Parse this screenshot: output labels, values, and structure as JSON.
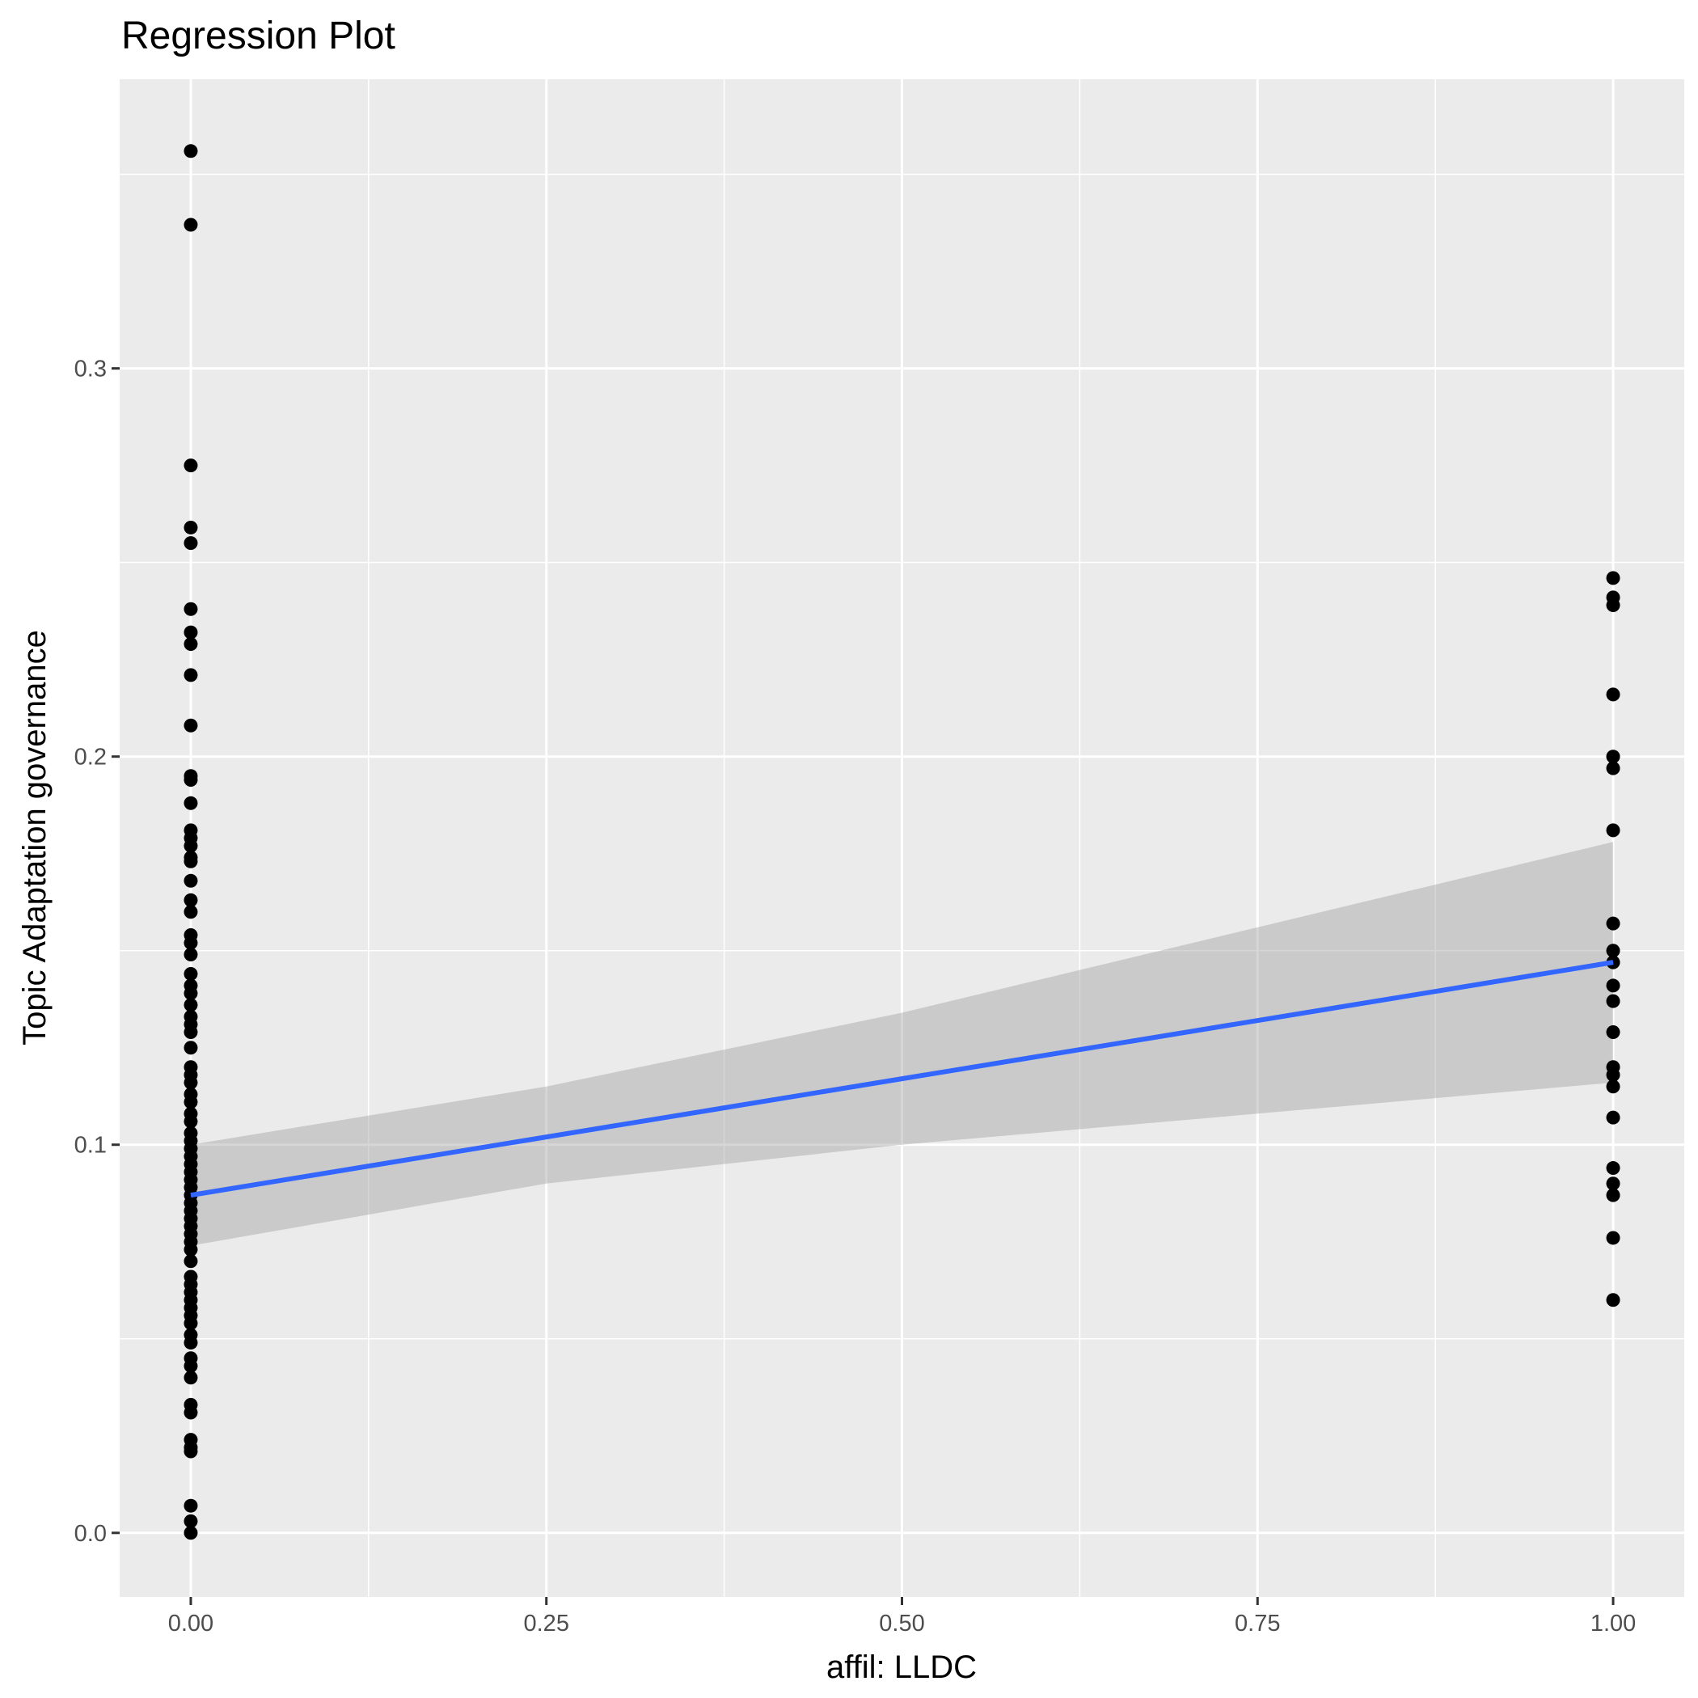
{
  "chart_data": {
    "type": "scatter",
    "title": "Regression Plot",
    "xlabel": "affil: LLDC",
    "ylabel": "Topic Adaptation governance",
    "xlim": [
      -0.05,
      1.05
    ],
    "ylim": [
      -0.0165,
      0.3745
    ],
    "x_ticks": [
      0.0,
      0.25,
      0.5,
      0.75,
      1.0
    ],
    "x_tick_labels": [
      "0.00",
      "0.25",
      "0.50",
      "0.75",
      "1.00"
    ],
    "y_ticks": [
      0.0,
      0.1,
      0.2,
      0.3
    ],
    "y_tick_labels": [
      "0.0",
      "0.1",
      "0.2",
      "0.3"
    ],
    "grid": true,
    "background": "#ebebeb",
    "grid_color": "#ffffff",
    "point_color": "#000000",
    "fit_color": "#3366ff",
    "ribbon_color": "#999999",
    "points_x0": [
      0.356,
      0.337,
      0.275,
      0.259,
      0.255,
      0.238,
      0.232,
      0.229,
      0.221,
      0.208,
      0.195,
      0.194,
      0.188,
      0.181,
      0.179,
      0.177,
      0.174,
      0.173,
      0.168,
      0.163,
      0.16,
      0.154,
      0.152,
      0.149,
      0.144,
      0.141,
      0.139,
      0.136,
      0.133,
      0.131,
      0.129,
      0.125,
      0.12,
      0.118,
      0.116,
      0.113,
      0.111,
      0.108,
      0.106,
      0.103,
      0.101,
      0.099,
      0.097,
      0.095,
      0.093,
      0.091,
      0.089,
      0.087,
      0.085,
      0.083,
      0.081,
      0.079,
      0.077,
      0.075,
      0.073,
      0.07,
      0.066,
      0.064,
      0.062,
      0.06,
      0.058,
      0.056,
      0.054,
      0.051,
      0.049,
      0.045,
      0.043,
      0.04,
      0.033,
      0.031,
      0.024,
      0.022,
      0.021,
      0.007,
      0.003,
      0.0
    ],
    "points_x1": [
      0.246,
      0.241,
      0.239,
      0.216,
      0.2,
      0.197,
      0.181,
      0.157,
      0.15,
      0.147,
      0.141,
      0.137,
      0.129,
      0.12,
      0.118,
      0.115,
      0.107,
      0.094,
      0.09,
      0.087,
      0.076,
      0.06
    ],
    "fit": {
      "x": [
        0.0,
        1.0
      ],
      "y": [
        0.087,
        0.147
      ]
    },
    "ribbon": {
      "x": [
        0.0,
        0.25,
        0.5,
        0.75,
        1.0
      ],
      "lower": [
        0.074,
        0.09,
        0.1,
        0.108,
        0.116
      ],
      "upper": [
        0.1,
        0.115,
        0.134,
        0.156,
        0.178
      ]
    }
  }
}
